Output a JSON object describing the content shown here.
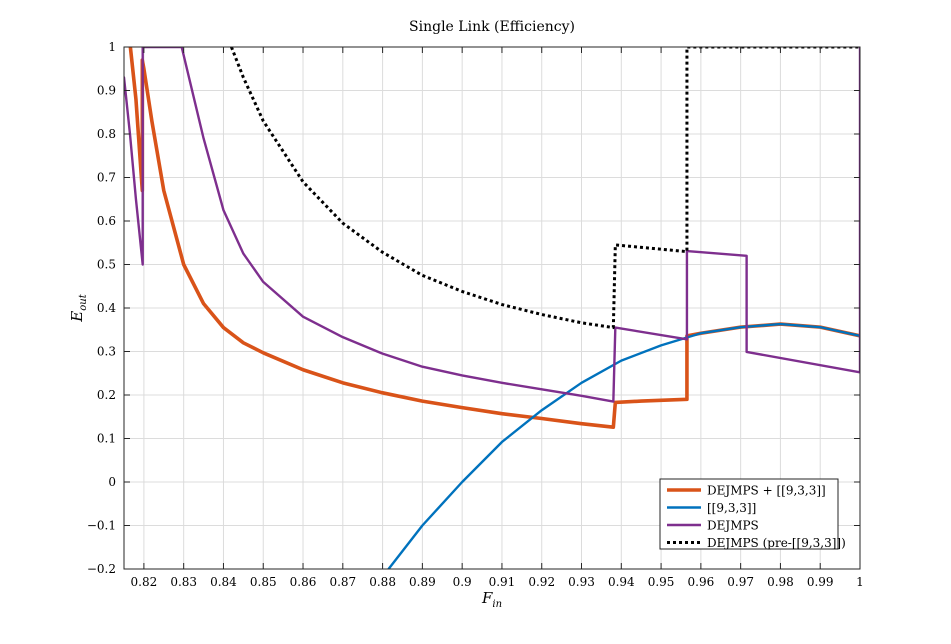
{
  "chart_data": {
    "type": "line",
    "title": "Single Link (Efficiency)",
    "xlabel": "F",
    "xlabel_sub": "in",
    "ylabel": "E",
    "ylabel_sub": "out",
    "xlim": [
      0.815,
      1.0
    ],
    "ylim": [
      -0.2,
      1.0
    ],
    "grid": true,
    "legend_position": "bottom-right",
    "xticks": [
      0.82,
      0.83,
      0.84,
      0.85,
      0.86,
      0.87,
      0.88,
      0.89,
      0.9,
      0.91,
      0.92,
      0.93,
      0.94,
      0.95,
      0.96,
      0.97,
      0.98,
      0.99,
      1.0
    ],
    "xtick_labels": [
      "0.82",
      "0.83",
      "0.84",
      "0.85",
      "0.86",
      "0.87",
      "0.88",
      "0.89",
      "0.9",
      "0.91",
      "0.92",
      "0.93",
      "0.94",
      "0.95",
      "0.96",
      "0.97",
      "0.98",
      "0.99",
      "1"
    ],
    "yticks": [
      -0.2,
      -0.1,
      0,
      0.1,
      0.2,
      0.3,
      0.4,
      0.5,
      0.6,
      0.7,
      0.8,
      0.9,
      1.0
    ],
    "ytick_labels": [
      "−0.2",
      "−0.1",
      "0",
      "0.1",
      "0.2",
      "0.3",
      "0.4",
      "0.5",
      "0.6",
      "0.7",
      "0.8",
      "0.9",
      "1"
    ],
    "series": [
      {
        "name": "DEJMPS + [[9,3,3]]",
        "color": "#d95319",
        "style": "solid",
        "width": "thick",
        "points": [
          [
            0.8166,
            1.0
          ],
          [
            0.818,
            0.88
          ],
          [
            0.8196,
            0.67
          ],
          [
            0.8196,
            0.97
          ],
          [
            0.82,
            0.95
          ],
          [
            0.822,
            0.83
          ],
          [
            0.825,
            0.67
          ],
          [
            0.83,
            0.5
          ],
          [
            0.835,
            0.41
          ],
          [
            0.84,
            0.355
          ],
          [
            0.845,
            0.32
          ],
          [
            0.85,
            0.297
          ],
          [
            0.86,
            0.258
          ],
          [
            0.87,
            0.228
          ],
          [
            0.88,
            0.205
          ],
          [
            0.89,
            0.186
          ],
          [
            0.9,
            0.171
          ],
          [
            0.91,
            0.157
          ],
          [
            0.92,
            0.146
          ],
          [
            0.93,
            0.134
          ],
          [
            0.938,
            0.126
          ],
          [
            0.9385,
            0.183
          ],
          [
            0.945,
            0.186
          ],
          [
            0.9565,
            0.19
          ],
          [
            0.9565,
            0.336
          ],
          [
            0.96,
            0.342
          ],
          [
            0.97,
            0.356
          ],
          [
            0.98,
            0.363
          ],
          [
            0.99,
            0.356
          ],
          [
            1.0,
            0.336
          ]
        ]
      },
      {
        "name": "[[9,3,3]]",
        "color": "#0072bd",
        "style": "solid",
        "width": "normal",
        "points": [
          [
            0.8815,
            -0.2
          ],
          [
            0.89,
            -0.1
          ],
          [
            0.9,
            0.0
          ],
          [
            0.91,
            0.092
          ],
          [
            0.92,
            0.165
          ],
          [
            0.93,
            0.228
          ],
          [
            0.94,
            0.279
          ],
          [
            0.95,
            0.314
          ],
          [
            0.96,
            0.342
          ],
          [
            0.97,
            0.356
          ],
          [
            0.98,
            0.363
          ],
          [
            0.99,
            0.356
          ],
          [
            1.0,
            0.336
          ]
        ]
      },
      {
        "name": "DEJMPS",
        "color": "#7e2f8e",
        "style": "solid",
        "width": "normal",
        "points": [
          [
            0.815,
            0.93
          ],
          [
            0.8165,
            0.8
          ],
          [
            0.818,
            0.65
          ],
          [
            0.8197,
            0.5
          ],
          [
            0.8197,
            1.0
          ],
          [
            0.8295,
            1.0
          ],
          [
            0.835,
            0.79
          ],
          [
            0.84,
            0.625
          ],
          [
            0.845,
            0.525
          ],
          [
            0.85,
            0.46
          ],
          [
            0.86,
            0.38
          ],
          [
            0.87,
            0.333
          ],
          [
            0.88,
            0.295
          ],
          [
            0.89,
            0.265
          ],
          [
            0.9,
            0.245
          ],
          [
            0.91,
            0.228
          ],
          [
            0.92,
            0.213
          ],
          [
            0.93,
            0.198
          ],
          [
            0.938,
            0.185
          ],
          [
            0.9385,
            0.355
          ],
          [
            0.9565,
            0.328
          ],
          [
            0.9565,
            0.531
          ],
          [
            0.9715,
            0.52
          ],
          [
            0.9715,
            0.299
          ],
          [
            1.0,
            0.252
          ],
          [
            1.0,
            1.0
          ]
        ]
      },
      {
        "name": "DEJMPS (pre-[[9,3,3]])",
        "color": "#000000",
        "style": "dotted",
        "width": "thick",
        "points": [
          [
            0.842,
            1.0
          ],
          [
            0.845,
            0.93
          ],
          [
            0.85,
            0.83
          ],
          [
            0.86,
            0.69
          ],
          [
            0.87,
            0.595
          ],
          [
            0.88,
            0.528
          ],
          [
            0.89,
            0.475
          ],
          [
            0.9,
            0.438
          ],
          [
            0.91,
            0.408
          ],
          [
            0.92,
            0.385
          ],
          [
            0.93,
            0.366
          ],
          [
            0.938,
            0.355
          ],
          [
            0.9385,
            0.545
          ],
          [
            0.956,
            0.53
          ],
          [
            0.9565,
            0.53
          ],
          [
            0.9565,
            1.0
          ],
          [
            1.0,
            1.0
          ]
        ]
      }
    ]
  }
}
